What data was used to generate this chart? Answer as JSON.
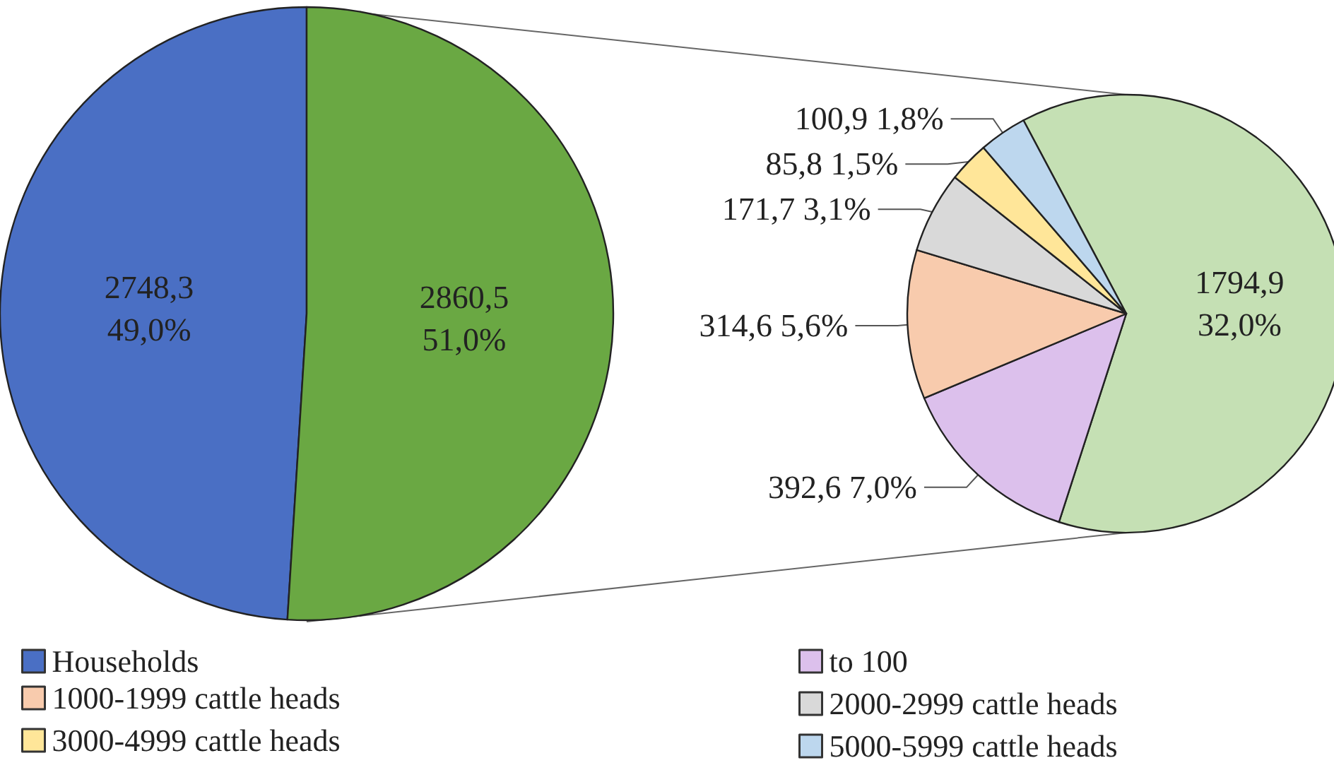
{
  "chart_data": [
    {
      "type": "pie",
      "categories": [
        "Households",
        null
      ],
      "values": [
        2748.3,
        2860.5
      ],
      "colors": [
        "#4a6fc4",
        "#6aa843"
      ],
      "value_labels": [
        "2748,3\n49,0%",
        "2860,5\n51,0%"
      ],
      "legend": "bottom left"
    },
    {
      "type": "pie",
      "categories": [
        null,
        "to 100",
        "1000-1999 cattle heads",
        "2000-2999 cattle heads",
        "3000-4999 cattle heads",
        "5000-5999 cattle heads"
      ],
      "values": [
        1794.9,
        392.6,
        314.6,
        171.7,
        85.8,
        100.9
      ],
      "colors": [
        "#c5e0b4",
        "#dcc0ec",
        "#f8cbad",
        "#d9d9d9",
        "#ffe699",
        "#bdd7ee"
      ],
      "value_labels": [
        "1794,9\n32,0%",
        "392,6 7,0%",
        "314,6 5,6%",
        "171,7 3,1%",
        "85,8 1,5%",
        "100,9 1,8%"
      ],
      "legend": "bottom"
    }
  ]
}
